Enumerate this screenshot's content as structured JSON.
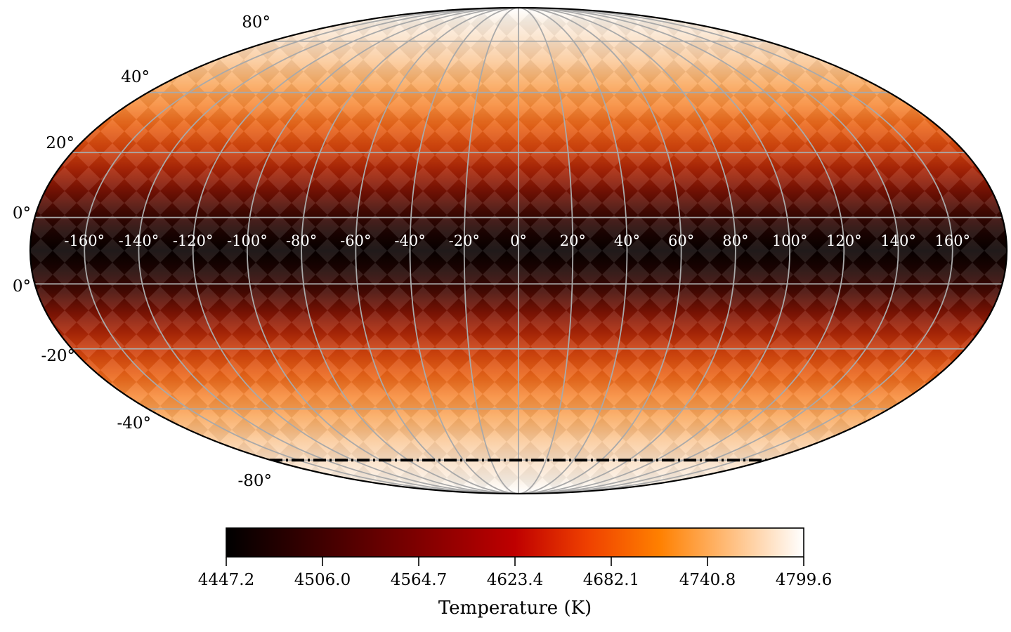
{
  "chart_data": {
    "type": "heatmap",
    "projection": "mollweide",
    "title": "",
    "description": "Mollweide all-sky map of surface temperature, hottest (white) at the poles and coolest (black) along the equator, rendered from HEALPix-style diamond pixels with a gist_heat colormap.",
    "lon_tick_labels": [
      "-160°",
      "-140°",
      "-120°",
      "-100°",
      "-80°",
      "-60°",
      "-40°",
      "-20°",
      "0°",
      "20°",
      "40°",
      "60°",
      "80°",
      "100°",
      "120°",
      "140°",
      "160°"
    ],
    "lon_tick_values_deg": [
      -160,
      -140,
      -120,
      -100,
      -80,
      -60,
      -40,
      -20,
      0,
      20,
      40,
      60,
      80,
      100,
      120,
      140,
      160
    ],
    "lat_tick_labels": [
      "80°",
      "40°",
      "20°",
      "0°",
      "0°",
      "-20°",
      "-40°",
      "-80°"
    ],
    "lat_gridlines_deg": [
      70,
      50,
      30,
      10,
      -10,
      -30,
      -50,
      -70
    ],
    "lon_gridline_step_deg": 20,
    "graticule_color": "#a9a9a9",
    "boundary_color": "#000000",
    "background_color": "#ffffff",
    "overlay_line": {
      "latitude_deg": -70,
      "style": "dash-dot",
      "color": "#000000"
    },
    "colormap": {
      "name": "gist_heat",
      "stops": [
        {
          "offset": 0.0,
          "color": "#000000"
        },
        {
          "offset": 0.125,
          "color": "#300000"
        },
        {
          "offset": 0.25,
          "color": "#600000"
        },
        {
          "offset": 0.375,
          "color": "#8f0000"
        },
        {
          "offset": 0.5,
          "color": "#bf0000"
        },
        {
          "offset": 0.625,
          "color": "#ef4000"
        },
        {
          "offset": 0.75,
          "color": "#ff8000"
        },
        {
          "offset": 0.875,
          "color": "#ffbf80"
        },
        {
          "offset": 1.0,
          "color": "#ffffff"
        }
      ]
    },
    "map_vertical_gradient": [
      {
        "offset": 0.0,
        "color": "#ffffff"
      },
      {
        "offset": 0.0275,
        "color": "#fcf1e5"
      },
      {
        "offset": 0.0694,
        "color": "#fbdfc4"
      },
      {
        "offset": 0.114,
        "color": "#fbc795"
      },
      {
        "offset": 0.159,
        "color": "#f9a95f"
      },
      {
        "offset": 0.199,
        "color": "#f78c3b"
      },
      {
        "offset": 0.244,
        "color": "#ea6418"
      },
      {
        "offset": 0.29,
        "color": "#d2430d"
      },
      {
        "offset": 0.331,
        "color": "#ac2607"
      },
      {
        "offset": 0.371,
        "color": "#7e1404"
      },
      {
        "offset": 0.415,
        "color": "#460902"
      },
      {
        "offset": 0.461,
        "color": "#1c0301"
      },
      {
        "offset": 0.5,
        "color": "#070000"
      },
      {
        "offset": 0.539,
        "color": "#1c0301"
      },
      {
        "offset": 0.585,
        "color": "#460902"
      },
      {
        "offset": 0.629,
        "color": "#7e1404"
      },
      {
        "offset": 0.669,
        "color": "#ac2607"
      },
      {
        "offset": 0.71,
        "color": "#d2430d"
      },
      {
        "offset": 0.756,
        "color": "#ea6418"
      },
      {
        "offset": 0.801,
        "color": "#f78c3b"
      },
      {
        "offset": 0.841,
        "color": "#f9a95f"
      },
      {
        "offset": 0.886,
        "color": "#fbc795"
      },
      {
        "offset": 0.9306,
        "color": "#fbdfc4"
      },
      {
        "offset": 0.9725,
        "color": "#fcf1e5"
      },
      {
        "offset": 1.0,
        "color": "#ffffff"
      }
    ],
    "colorbar": {
      "label": "Temperature (K)",
      "tick_labels": [
        "4447.2",
        "4506.0",
        "4564.7",
        "4623.4",
        "4682.1",
        "4740.8",
        "4799.6"
      ],
      "tick_values": [
        4447.2,
        4506.0,
        4564.7,
        4623.4,
        4682.1,
        4740.8,
        4799.6
      ],
      "vmin": 4447.2,
      "vmax": 4799.6
    },
    "estimated_temperature_vs_latitude": [
      {
        "lat_deg": 0,
        "temp_K": 4451
      },
      {
        "lat_deg": 15,
        "temp_K": 4533
      },
      {
        "lat_deg": 30,
        "temp_K": 4641
      },
      {
        "lat_deg": 45,
        "temp_K": 4701
      },
      {
        "lat_deg": 60,
        "temp_K": 4754
      },
      {
        "lat_deg": 75,
        "temp_K": 4775
      },
      {
        "lat_deg": 90,
        "temp_K": 4799.6
      }
    ]
  }
}
